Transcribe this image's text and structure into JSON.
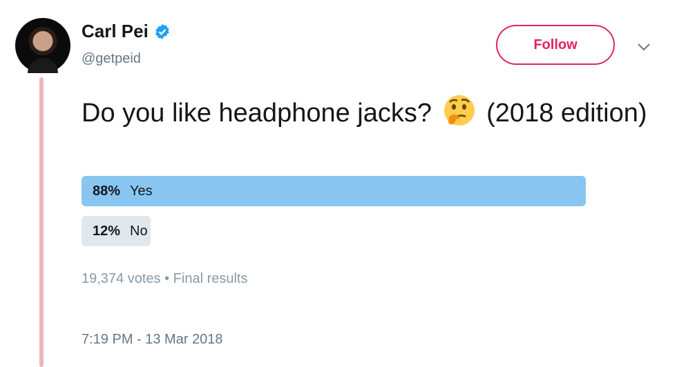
{
  "author": {
    "name": "Carl Pei",
    "handle": "@getpeid",
    "verified": true
  },
  "follow_label": "Follow",
  "tweet": {
    "text_before": "Do you like headphone jacks?",
    "emoji": "thinking-face",
    "text_after": "(2018 edition)"
  },
  "poll": {
    "options": [
      {
        "label": "Yes",
        "percent_label": "88%",
        "percent": 88,
        "color": "#88c6f1"
      },
      {
        "label": "No",
        "percent_label": "12%",
        "percent": 12,
        "color": "#e1e8ed"
      }
    ],
    "votes": "19,374 votes",
    "separator": "•",
    "status": "Final results"
  },
  "timestamp": "7:19 PM - 13 Mar 2018",
  "colors": {
    "accent": "#e0245e",
    "verified": "#1da1f2",
    "thread": "#edb6be"
  }
}
